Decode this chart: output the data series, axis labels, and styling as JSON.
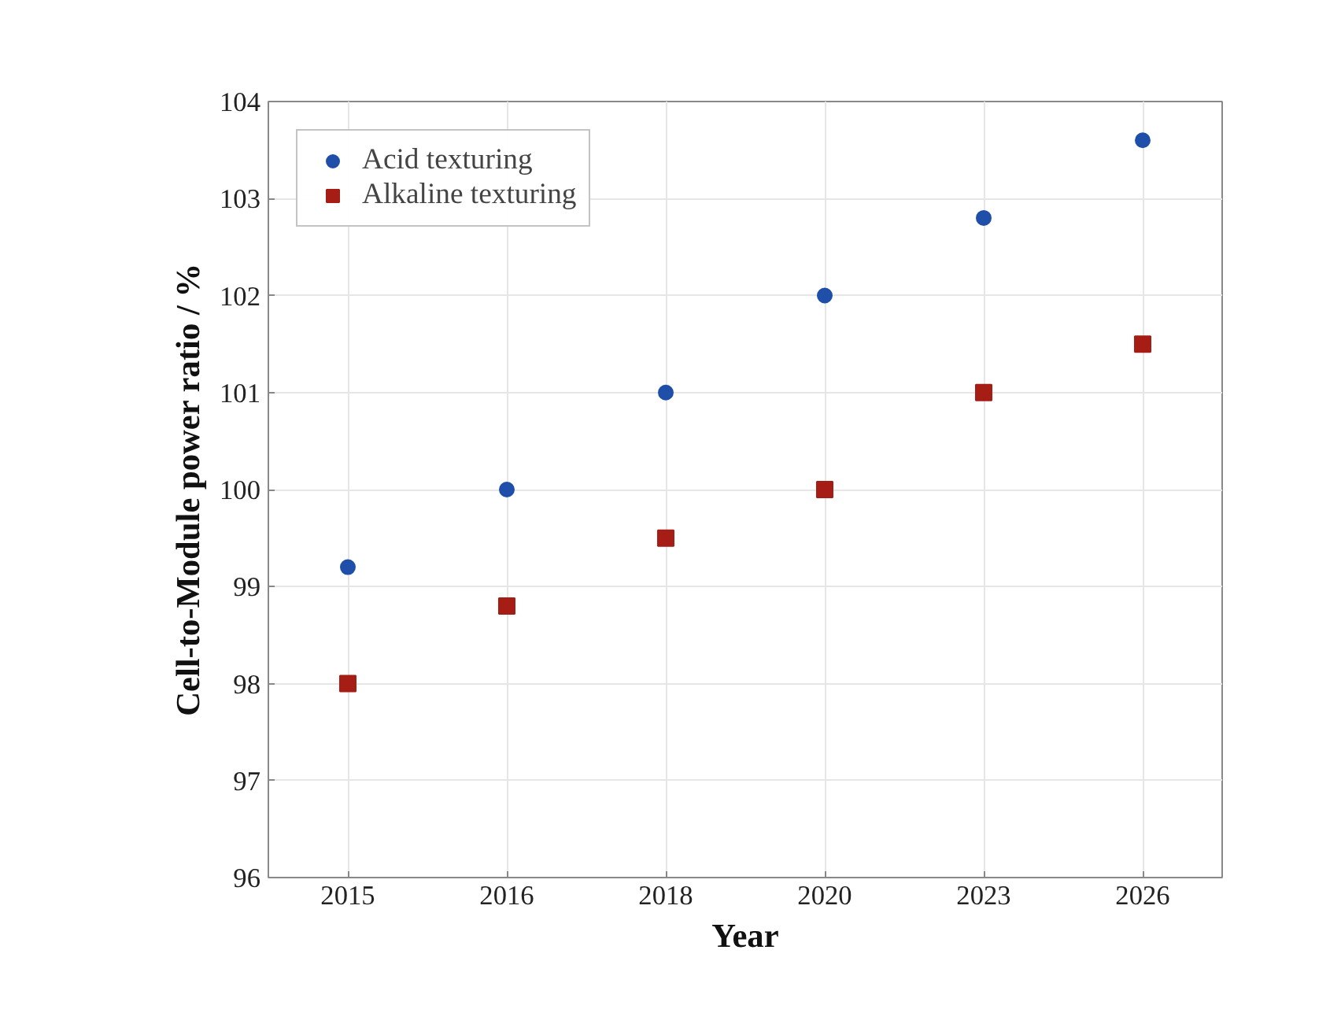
{
  "chart_data": {
    "type": "scatter",
    "xlabel": "Year",
    "ylabel": "Cell-to-Module power ratio / %",
    "categories": [
      "2015",
      "2016",
      "2018",
      "2020",
      "2023",
      "2026"
    ],
    "series": [
      {
        "name": "Acid texturing",
        "color": "#1f4fa8",
        "marker": "circle",
        "values": [
          99.2,
          100,
          101,
          102,
          102.8,
          103.6
        ]
      },
      {
        "name": "Alkaline texturing",
        "color": "#a51d14",
        "marker": "square",
        "values": [
          98,
          98.8,
          99.5,
          100,
          101,
          101.5
        ]
      }
    ],
    "ylim": [
      96,
      104
    ],
    "yticks": [
      96,
      97,
      98,
      99,
      100,
      101,
      102,
      103,
      104
    ],
    "grid": true,
    "legend": "top left"
  }
}
